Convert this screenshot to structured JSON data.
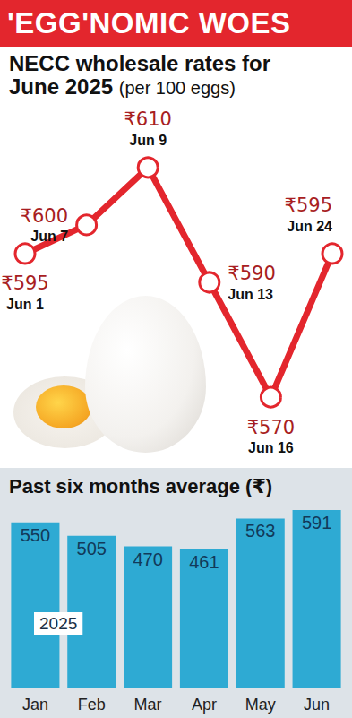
{
  "header": "'EGG'NOMIC WOES",
  "chart_data": [
    {
      "type": "line",
      "title": "NECC wholesale rates for June 2025",
      "subtitle": "(per 100 eggs)",
      "categories": [
        "Jun 1",
        "Jun 7",
        "Jun 9",
        "Jun 13",
        "Jun 16",
        "Jun 24"
      ],
      "values": [
        595,
        600,
        610,
        590,
        570,
        595
      ],
      "value_labels": [
        "₹595",
        "₹600",
        "₹610",
        "₹590",
        "₹570",
        "₹595"
      ],
      "color": "#e3262d",
      "marker": "circle",
      "line_style": "solid",
      "data_labels": true,
      "tick_labels": false,
      "grid": false
    },
    {
      "type": "bar",
      "title": "Past six months average (₹)",
      "categories": [
        "Jan",
        "Feb",
        "Mar",
        "Apr",
        "May",
        "Jun"
      ],
      "values": [
        550,
        505,
        470,
        461,
        563,
        591
      ],
      "color": "#2eaad3",
      "data_labels": true,
      "tick_labels": "x",
      "grid": false,
      "annotations": [
        "2025"
      ]
    }
  ]
}
